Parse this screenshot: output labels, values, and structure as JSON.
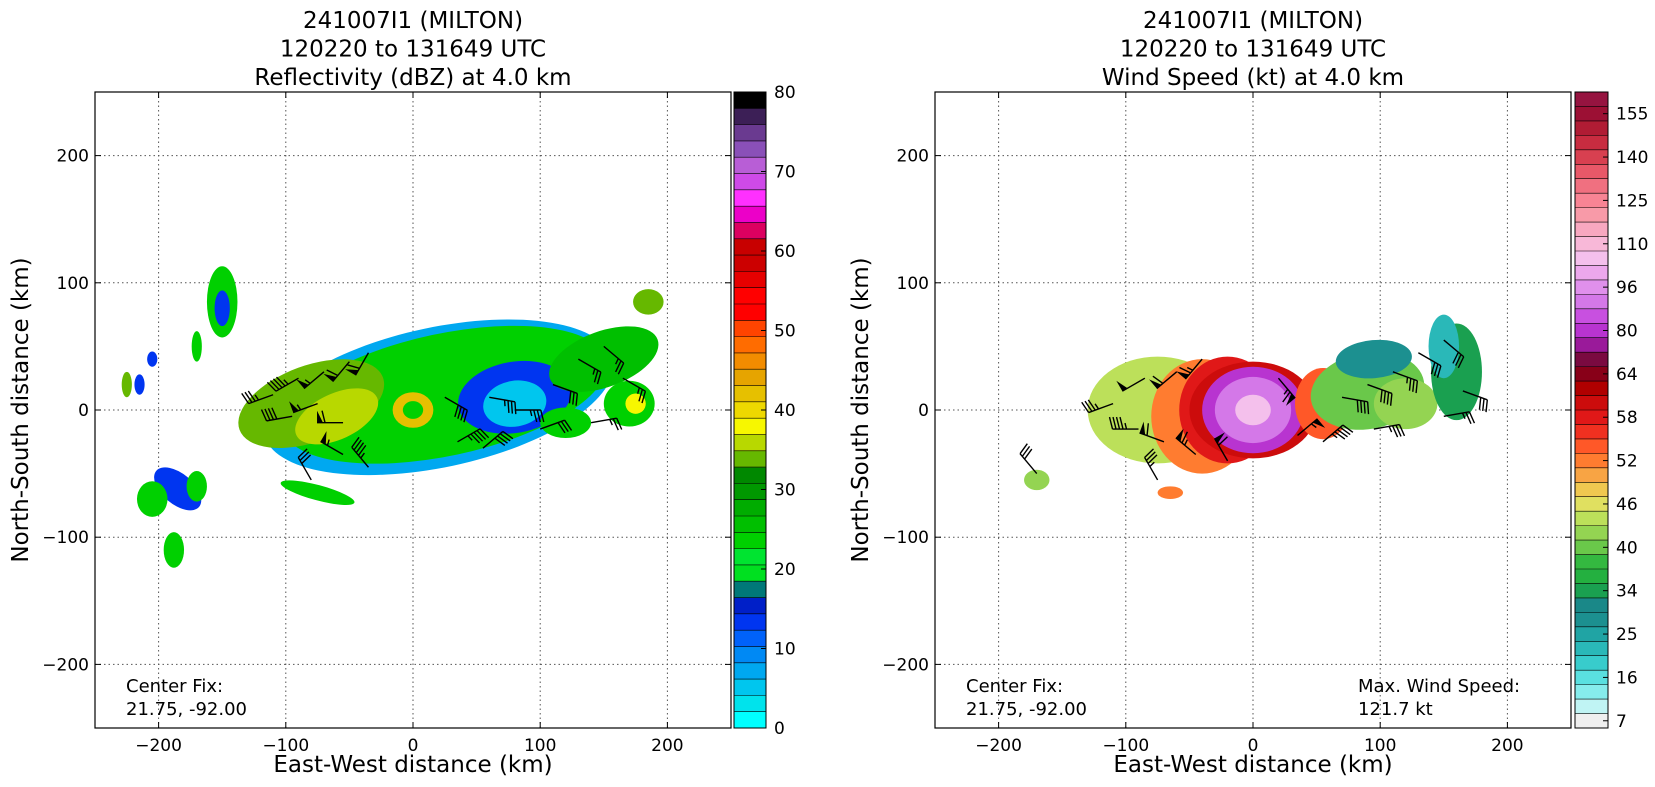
{
  "chart_data": [
    {
      "type": "heatmap",
      "panel": "left",
      "title": [
        "241007I1 (MILTON)",
        "120220 to 131649 UTC",
        "Reflectivity (dBZ) at 4.0 km"
      ],
      "xlabel": "East-West distance (km)",
      "ylabel": "North-South distance (km)",
      "xlim": [
        -250,
        250
      ],
      "ylim": [
        -250,
        250
      ],
      "xticks": [
        -200,
        -100,
        0,
        100,
        200
      ],
      "yticks": [
        -200,
        -100,
        0,
        100,
        200
      ],
      "grid": true,
      "annotations": [
        {
          "text": "Center Fix:",
          "corner": "bottom-left",
          "line": 1
        },
        {
          "text": "21.75, -92.00",
          "corner": "bottom-left",
          "line": 2
        }
      ],
      "colorbar": {
        "min": 0,
        "max": 80,
        "tick_values": [
          0,
          10,
          20,
          30,
          40,
          50,
          60,
          70,
          80
        ],
        "tick_labels": [
          "0",
          "10",
          "20",
          "30",
          "40",
          "50",
          "60",
          "70",
          "80"
        ],
        "colors": [
          "#00ffff",
          "#00e3ec",
          "#00c6ee",
          "#00a8f0",
          "#0089f4",
          "#0062fa",
          "#0035f0",
          "#001fc8",
          "#007878",
          "#00e020",
          "#00e430",
          "#00d000",
          "#00bf00",
          "#00ac00",
          "#009800",
          "#008800",
          "#66b800",
          "#b8d800",
          "#f7f700",
          "#eed800",
          "#e6c000",
          "#e6a400",
          "#f28c00",
          "#ff6c00",
          "#ff4400",
          "#ff0000",
          "#ff0000",
          "#e60000",
          "#cc0000",
          "#c80000",
          "#dc0060",
          "#ec00c8",
          "#ff30ff",
          "#ce4ae8",
          "#b85ed6",
          "#8a50b8",
          "#6a3a90",
          "#3c1f56",
          "#000000"
        ]
      },
      "features": [
        {
          "shape": "ellipse",
          "cx": 20,
          "cy": 10,
          "rx": 140,
          "ry": 55,
          "rot": -12,
          "color": "#00a8f0"
        },
        {
          "shape": "ellipse",
          "cx": 25,
          "cy": 12,
          "rx": 130,
          "ry": 48,
          "rot": -12,
          "color": "#00d000"
        },
        {
          "shape": "ellipse",
          "cx": -80,
          "cy": 5,
          "rx": 60,
          "ry": 30,
          "rot": -20,
          "color": "#66b800"
        },
        {
          "shape": "ellipse",
          "cx": -60,
          "cy": -5,
          "rx": 35,
          "ry": 18,
          "rot": -25,
          "color": "#b8d800"
        },
        {
          "shape": "ellipse",
          "cx": 80,
          "cy": 10,
          "rx": 45,
          "ry": 28,
          "rot": -10,
          "color": "#0035f0"
        },
        {
          "shape": "ellipse",
          "cx": 80,
          "cy": 5,
          "rx": 25,
          "ry": 18,
          "rot": -10,
          "color": "#00c6ee"
        },
        {
          "shape": "ellipse",
          "cx": 150,
          "cy": 40,
          "rx": 45,
          "ry": 22,
          "rot": -20,
          "color": "#00bf00"
        },
        {
          "shape": "ellipse",
          "cx": 170,
          "cy": 5,
          "rx": 20,
          "ry": 18,
          "rot": 0,
          "color": "#00d000"
        },
        {
          "shape": "ellipse",
          "cx": 175,
          "cy": 5,
          "rx": 8,
          "ry": 8,
          "rot": 0,
          "color": "#f7f700"
        },
        {
          "shape": "ellipse",
          "cx": 185,
          "cy": 85,
          "rx": 12,
          "ry": 10,
          "rot": 0,
          "color": "#66b800"
        },
        {
          "shape": "ellipse",
          "cx": 0,
          "cy": 0,
          "rx": 16,
          "ry": 14,
          "rot": 0,
          "color": "#e6c000"
        },
        {
          "shape": "ellipse",
          "cx": 0,
          "cy": 0,
          "rx": 8,
          "ry": 7,
          "rot": 0,
          "color": "#00d000"
        },
        {
          "shape": "ellipse",
          "cx": -150,
          "cy": 85,
          "rx": 12,
          "ry": 28,
          "rot": 0,
          "color": "#00d000"
        },
        {
          "shape": "ellipse",
          "cx": -150,
          "cy": 80,
          "rx": 6,
          "ry": 14,
          "rot": 0,
          "color": "#0035f0"
        },
        {
          "shape": "ellipse",
          "cx": -170,
          "cy": 50,
          "rx": 4,
          "ry": 12,
          "rot": 0,
          "color": "#00d000"
        },
        {
          "shape": "ellipse",
          "cx": -205,
          "cy": 40,
          "rx": 4,
          "ry": 6,
          "rot": 0,
          "color": "#0035f0"
        },
        {
          "shape": "ellipse",
          "cx": -225,
          "cy": 20,
          "rx": 4,
          "ry": 10,
          "rot": 0,
          "color": "#66b800"
        },
        {
          "shape": "ellipse",
          "cx": -215,
          "cy": 20,
          "rx": 4,
          "ry": 8,
          "rot": 0,
          "color": "#0035f0"
        },
        {
          "shape": "ellipse",
          "cx": -185,
          "cy": -62,
          "rx": 22,
          "ry": 12,
          "rot": 40,
          "color": "#0035f0"
        },
        {
          "shape": "ellipse",
          "cx": -205,
          "cy": -70,
          "rx": 12,
          "ry": 14,
          "rot": 0,
          "color": "#00d000"
        },
        {
          "shape": "ellipse",
          "cx": -170,
          "cy": -60,
          "rx": 8,
          "ry": 12,
          "rot": 0,
          "color": "#00d000"
        },
        {
          "shape": "ellipse",
          "cx": -188,
          "cy": -110,
          "rx": 8,
          "ry": 14,
          "rot": 0,
          "color": "#00d000"
        },
        {
          "shape": "ellipse",
          "cx": -75,
          "cy": -65,
          "rx": 30,
          "ry": 6,
          "rot": 15,
          "color": "#00d000"
        },
        {
          "shape": "ellipse",
          "cx": 120,
          "cy": -10,
          "rx": 20,
          "ry": 12,
          "rot": 0,
          "color": "#00d000"
        }
      ],
      "barbs": [
        {
          "x": -110,
          "y": 12,
          "dir": 250,
          "kt": 35
        },
        {
          "x": -90,
          "y": 25,
          "dir": 240,
          "kt": 45
        },
        {
          "x": -70,
          "y": 30,
          "dir": 230,
          "kt": 55
        },
        {
          "x": -50,
          "y": 38,
          "dir": 220,
          "kt": 60
        },
        {
          "x": -35,
          "y": 45,
          "dir": 210,
          "kt": 60
        },
        {
          "x": -95,
          "y": -5,
          "dir": 260,
          "kt": 40
        },
        {
          "x": -75,
          "y": 5,
          "dir": 250,
          "kt": 55
        },
        {
          "x": -55,
          "y": -10,
          "dir": 270,
          "kt": 60
        },
        {
          "x": -55,
          "y": -35,
          "dir": 300,
          "kt": 55
        },
        {
          "x": -35,
          "y": -45,
          "dir": 320,
          "kt": 45
        },
        {
          "x": 25,
          "y": 10,
          "dir": 120,
          "kt": 40
        },
        {
          "x": 35,
          "y": -25,
          "dir": 60,
          "kt": 45
        },
        {
          "x": 55,
          "y": -30,
          "dir": 50,
          "kt": 40
        },
        {
          "x": 60,
          "y": 10,
          "dir": 100,
          "kt": 35
        },
        {
          "x": 80,
          "y": 0,
          "dir": 90,
          "kt": 35
        },
        {
          "x": 100,
          "y": -15,
          "dir": 70,
          "kt": 30
        },
        {
          "x": 110,
          "y": 20,
          "dir": 110,
          "kt": 30
        },
        {
          "x": 130,
          "y": 40,
          "dir": 120,
          "kt": 25
        },
        {
          "x": 150,
          "y": 50,
          "dir": 130,
          "kt": 25
        },
        {
          "x": 165,
          "y": 25,
          "dir": 120,
          "kt": 25
        },
        {
          "x": 140,
          "y": -10,
          "dir": 80,
          "kt": 25
        },
        {
          "x": -80,
          "y": -55,
          "dir": 330,
          "kt": 30
        }
      ]
    },
    {
      "type": "heatmap",
      "panel": "right",
      "title": [
        "241007I1 (MILTON)",
        "120220 to 131649 UTC",
        "Wind Speed (kt) at 4.0 km"
      ],
      "xlabel": "East-West distance (km)",
      "ylabel": "North-South distance (km)",
      "xlim": [
        -250,
        250
      ],
      "ylim": [
        -250,
        250
      ],
      "xticks": [
        -200,
        -100,
        0,
        100,
        200
      ],
      "yticks": [
        -200,
        -100,
        0,
        100,
        200
      ],
      "grid": true,
      "annotations": [
        {
          "text": "Center Fix:",
          "corner": "bottom-left",
          "line": 1
        },
        {
          "text": "21.75, -92.00",
          "corner": "bottom-left",
          "line": 2
        },
        {
          "text": "Max. Wind Speed:",
          "corner": "bottom-right",
          "line": 1
        },
        {
          "text": "121.7 kt",
          "corner": "bottom-right",
          "line": 2
        }
      ],
      "colorbar": {
        "tick_labels": [
          "7",
          "16",
          "25",
          "34",
          "40",
          "46",
          "52",
          "58",
          "64",
          "80",
          "96",
          "110",
          "125",
          "140",
          "155"
        ],
        "tick_index": [
          0,
          3,
          6,
          9,
          12,
          15,
          18,
          21,
          24,
          27,
          30,
          33,
          36,
          39,
          42
        ],
        "colors": [
          "#efefef",
          "#c0f4f4",
          "#86ecec",
          "#5ae0e0",
          "#38cccc",
          "#2ab8b8",
          "#20a4a4",
          "#1c9090",
          "#1a8888",
          "#1aa050",
          "#24b040",
          "#34b840",
          "#6ac84a",
          "#94d452",
          "#bce05a",
          "#e0e060",
          "#f0c850",
          "#f8a444",
          "#ff7c30",
          "#ff5828",
          "#f03020",
          "#e01818",
          "#cc0c0c",
          "#b00000",
          "#880018",
          "#7a0a40",
          "#9a1a9a",
          "#b834d0",
          "#c850e0",
          "#d478e8",
          "#e090ec",
          "#eca8ec",
          "#f4c0ec",
          "#f8b8d8",
          "#f8a8c0",
          "#f89aa8",
          "#f88494",
          "#f07080",
          "#e85868",
          "#d84050",
          "#c82c40",
          "#b01c34",
          "#9c1034",
          "#961440"
        ]
      },
      "features": [
        {
          "shape": "ellipse",
          "cx": -75,
          "cy": 0,
          "rx": 55,
          "ry": 42,
          "rot": 0,
          "color": "#bce05a"
        },
        {
          "shape": "ellipse",
          "cx": -40,
          "cy": -5,
          "rx": 40,
          "ry": 45,
          "rot": 0,
          "color": "#ff7c30"
        },
        {
          "shape": "ellipse",
          "cx": -20,
          "cy": 0,
          "rx": 38,
          "ry": 42,
          "rot": 0,
          "color": "#e01818"
        },
        {
          "shape": "ellipse",
          "cx": 0,
          "cy": 0,
          "rx": 50,
          "ry": 38,
          "rot": 0,
          "color": "#cc0c0c"
        },
        {
          "shape": "ellipse",
          "cx": 0,
          "cy": 0,
          "rx": 40,
          "ry": 34,
          "rot": 0,
          "color": "#b834d0"
        },
        {
          "shape": "ellipse",
          "cx": 0,
          "cy": 0,
          "rx": 30,
          "ry": 26,
          "rot": 0,
          "color": "#d478e8"
        },
        {
          "shape": "ellipse",
          "cx": 0,
          "cy": 0,
          "rx": 14,
          "ry": 12,
          "rot": 0,
          "color": "#f4c0ec"
        },
        {
          "shape": "ellipse",
          "cx": 55,
          "cy": 5,
          "rx": 22,
          "ry": 28,
          "rot": 0,
          "color": "#ff5828"
        },
        {
          "shape": "ellipse",
          "cx": 90,
          "cy": 15,
          "rx": 45,
          "ry": 30,
          "rot": -10,
          "color": "#6ac84a"
        },
        {
          "shape": "ellipse",
          "cx": 95,
          "cy": 40,
          "rx": 30,
          "ry": 15,
          "rot": -5,
          "color": "#1c9090"
        },
        {
          "shape": "ellipse",
          "cx": 120,
          "cy": 5,
          "rx": 25,
          "ry": 20,
          "rot": 0,
          "color": "#94d452"
        },
        {
          "shape": "ellipse",
          "cx": 160,
          "cy": 30,
          "rx": 20,
          "ry": 38,
          "rot": 0,
          "color": "#1aa050"
        },
        {
          "shape": "ellipse",
          "cx": 150,
          "cy": 50,
          "rx": 12,
          "ry": 25,
          "rot": 0,
          "color": "#2ab8b8"
        },
        {
          "shape": "ellipse",
          "cx": -170,
          "cy": -55,
          "rx": 10,
          "ry": 8,
          "rot": 0,
          "color": "#94d452"
        },
        {
          "shape": "ellipse",
          "cx": -65,
          "cy": -65,
          "rx": 10,
          "ry": 5,
          "rot": 0,
          "color": "#ff7c30"
        }
      ],
      "barbs": [
        {
          "x": -110,
          "y": 5,
          "dir": 250,
          "kt": 35
        },
        {
          "x": -85,
          "y": 25,
          "dir": 240,
          "kt": 50
        },
        {
          "x": -60,
          "y": 30,
          "dir": 230,
          "kt": 60
        },
        {
          "x": -40,
          "y": 40,
          "dir": 220,
          "kt": 65
        },
        {
          "x": -90,
          "y": -15,
          "dir": 270,
          "kt": 45
        },
        {
          "x": -70,
          "y": -25,
          "dir": 290,
          "kt": 60
        },
        {
          "x": -45,
          "y": -35,
          "dir": 310,
          "kt": 65
        },
        {
          "x": -20,
          "y": -40,
          "dir": 330,
          "kt": 60
        },
        {
          "x": 20,
          "y": 25,
          "dir": 140,
          "kt": 65
        },
        {
          "x": 35,
          "y": -20,
          "dir": 50,
          "kt": 55
        },
        {
          "x": 55,
          "y": -25,
          "dir": 50,
          "kt": 45
        },
        {
          "x": 70,
          "y": 10,
          "dir": 100,
          "kt": 40
        },
        {
          "x": 90,
          "y": 20,
          "dir": 110,
          "kt": 40
        },
        {
          "x": 110,
          "y": 30,
          "dir": 110,
          "kt": 35
        },
        {
          "x": 95,
          "y": -15,
          "dir": 80,
          "kt": 35
        },
        {
          "x": 130,
          "y": 45,
          "dir": 120,
          "kt": 30
        },
        {
          "x": 150,
          "y": 55,
          "dir": 130,
          "kt": 30
        },
        {
          "x": 165,
          "y": 15,
          "dir": 110,
          "kt": 30
        },
        {
          "x": 150,
          "y": -5,
          "dir": 80,
          "kt": 25
        },
        {
          "x": -75,
          "y": -55,
          "dir": 330,
          "kt": 35
        },
        {
          "x": -170,
          "y": -50,
          "dir": 320,
          "kt": 30
        }
      ]
    }
  ]
}
